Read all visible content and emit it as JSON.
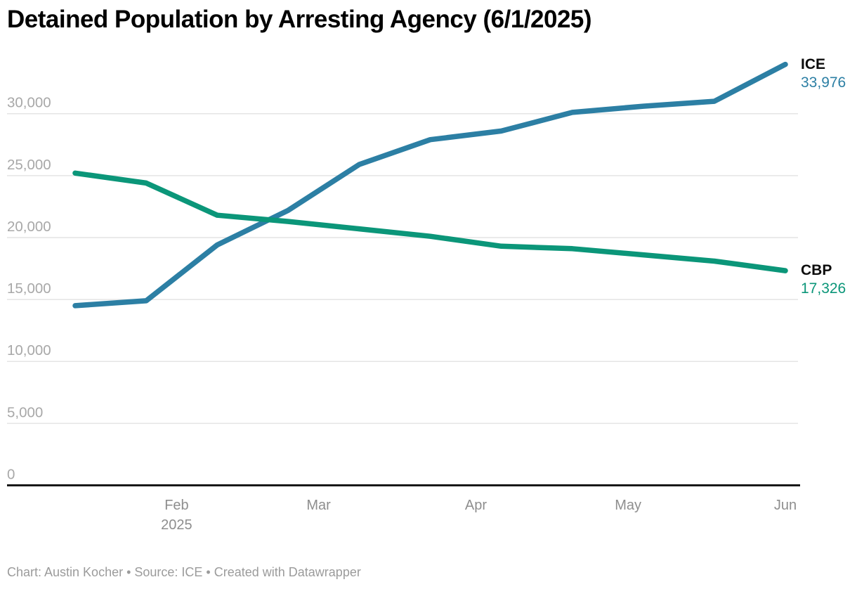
{
  "header": {
    "title": "Detained Population by Arresting Agency (6/1/2025)"
  },
  "footer": {
    "credit": "Chart: Austin Kocher • Source: ICE • Created with Datawrapper"
  },
  "chart_data": {
    "type": "line",
    "title": "Detained Population by Arresting Agency (6/1/2025)",
    "x_dates": [
      "1/12/2025",
      "1/26/2025",
      "2/9/2025",
      "2/23/2025",
      "3/9/2025",
      "3/23/2025",
      "4/6/2025",
      "4/20/2025",
      "5/4/2025",
      "5/18/2025",
      "6/1/2025"
    ],
    "x_day_offsets": [
      0,
      14,
      28,
      42,
      56,
      70,
      84,
      98,
      112,
      126,
      140
    ],
    "series": [
      {
        "name": "ICE",
        "color": "#2c7fa4",
        "values": [
          14500,
          14900,
          19400,
          22200,
          25900,
          27900,
          28600,
          30100,
          30600,
          31000,
          33976
        ],
        "end_label": "ICE",
        "end_value_label": "33,976"
      },
      {
        "name": "CBP",
        "color": "#0b9679",
        "values": [
          25200,
          24400,
          21800,
          21300,
          20700,
          20100,
          19300,
          19100,
          18600,
          18100,
          17326
        ],
        "end_label": "CBP",
        "end_value_label": "17,326"
      }
    ],
    "ylim": [
      0,
      30000
    ],
    "ytick_step": 5000,
    "ytick_labels": [
      "0",
      "5,000",
      "10,000",
      "15,000",
      "20,000",
      "25,000",
      "30,000"
    ],
    "x_axis_labels": [
      {
        "label": "Feb",
        "sublabel": "2025",
        "day": 20
      },
      {
        "label": "Mar",
        "sublabel": "",
        "day": 48
      },
      {
        "label": "Apr",
        "sublabel": "",
        "day": 79
      },
      {
        "label": "May",
        "sublabel": "",
        "day": 109
      },
      {
        "label": "Jun",
        "sublabel": "",
        "day": 140
      }
    ],
    "grid": true,
    "legend_position": "line-end-right",
    "style": {
      "grid_color": "#e4e4e4",
      "axis_color": "#181818",
      "ytick_color": "#a8a8a8",
      "xtick_color": "#8e8e8e",
      "line_width": 7.5
    }
  }
}
